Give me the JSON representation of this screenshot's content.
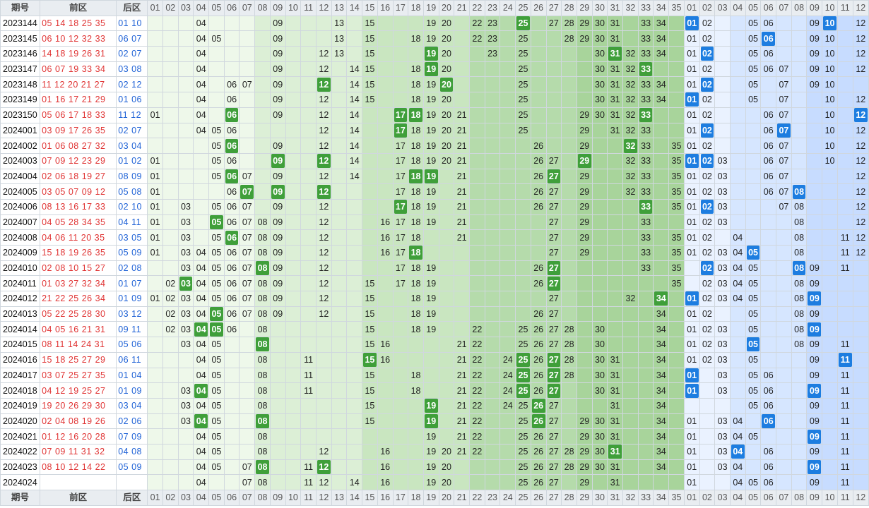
{
  "header": {
    "period_label": "期号",
    "front_label": "前区",
    "back_label": "后区",
    "front_numbers": [
      "01",
      "02",
      "03",
      "04",
      "05",
      "06",
      "07",
      "08",
      "09",
      "10",
      "11",
      "12",
      "13",
      "14",
      "15",
      "16",
      "17",
      "18",
      "19",
      "20",
      "21",
      "22",
      "23",
      "24",
      "25",
      "26",
      "27",
      "28",
      "29",
      "30",
      "31",
      "32",
      "33",
      "34",
      "35"
    ],
    "back_numbers": [
      "01",
      "02",
      "03",
      "04",
      "05",
      "06",
      "07",
      "08",
      "09",
      "10",
      "11",
      "12"
    ]
  },
  "colors": {
    "hit_front": "#3f9f3a",
    "hit_back": "#1d7de0",
    "front_draw_text": "#e03434",
    "back_draw_text": "#1f62d6"
  },
  "rows": [
    {
      "period": "2023144",
      "front": "05 14 18 25 35",
      "back": "01 10",
      "f": [
        4,
        9,
        13,
        15,
        19,
        20,
        22,
        23,
        25,
        27,
        28,
        29,
        30,
        31,
        33,
        34
      ],
      "fh": [
        25
      ],
      "b": [
        1,
        2,
        5,
        6,
        9,
        10,
        12
      ],
      "bh": [
        1,
        10
      ]
    },
    {
      "period": "2023145",
      "front": "06 10 12 32 33",
      "back": "06 07",
      "f": [
        4,
        5,
        9,
        13,
        15,
        18,
        19,
        20,
        22,
        23,
        25,
        28,
        29,
        30,
        31,
        33,
        34
      ],
      "fh": [],
      "b": [
        1,
        2,
        5,
        6,
        9,
        10,
        12
      ],
      "bh": [
        6
      ]
    },
    {
      "period": "2023146",
      "front": "14 18 19 26 31",
      "back": "02 07",
      "f": [
        4,
        9,
        12,
        13,
        15,
        19,
        20,
        23,
        25,
        30,
        31,
        32,
        33,
        34
      ],
      "fh": [
        19,
        31
      ],
      "b": [
        1,
        2,
        5,
        6,
        9,
        10,
        12
      ],
      "bh": [
        2
      ]
    },
    {
      "period": "2023147",
      "front": "06 07 19 33 34",
      "back": "03 08",
      "f": [
        4,
        9,
        12,
        14,
        15,
        18,
        19,
        20,
        25,
        30,
        31,
        32,
        33
      ],
      "fh": [
        19,
        33
      ],
      "b": [
        1,
        2,
        5,
        6,
        7,
        9,
        10,
        12
      ],
      "bh": []
    },
    {
      "period": "2023148",
      "front": "11 12 20 21 27",
      "back": "02 12",
      "f": [
        4,
        6,
        7,
        9,
        12,
        14,
        15,
        18,
        19,
        20,
        25,
        30,
        31,
        32,
        33,
        34
      ],
      "fh": [
        12,
        20
      ],
      "b": [
        1,
        2,
        5,
        7,
        9,
        10
      ],
      "bh": [
        2
      ]
    },
    {
      "period": "2023149",
      "front": "01 16 17 21 29",
      "back": "01 06",
      "f": [
        4,
        6,
        9,
        12,
        14,
        15,
        18,
        19,
        20,
        25,
        30,
        31,
        32,
        33,
        34
      ],
      "fh": [],
      "b": [
        1,
        2,
        5,
        7,
        10,
        12
      ],
      "bh": [
        1
      ]
    },
    {
      "period": "2023150",
      "front": "05 06 17 18 33",
      "back": "11 12",
      "f": [
        1,
        4,
        6,
        9,
        12,
        14,
        17,
        18,
        19,
        20,
        21,
        25,
        29,
        30,
        31,
        32,
        33
      ],
      "fh": [
        6,
        17,
        18,
        33
      ],
      "b": [
        1,
        2,
        6,
        7,
        10,
        12
      ],
      "bh": [
        12
      ]
    },
    {
      "period": "2024001",
      "front": "03 09 17 26 35",
      "back": "02 07",
      "f": [
        4,
        5,
        6,
        12,
        14,
        17,
        18,
        19,
        20,
        21,
        25,
        29,
        31,
        32,
        33
      ],
      "fh": [
        17
      ],
      "b": [
        1,
        2,
        6,
        7,
        10,
        12
      ],
      "bh": [
        2,
        7
      ]
    },
    {
      "period": "2024002",
      "front": "01 06 08 27 32",
      "back": "03 04",
      "f": [
        5,
        6,
        9,
        12,
        14,
        17,
        18,
        19,
        20,
        21,
        26,
        29,
        32,
        33,
        35
      ],
      "fh": [
        6,
        32
      ],
      "b": [
        1,
        2,
        6,
        7,
        10,
        12
      ],
      "bh": []
    },
    {
      "period": "2024003",
      "front": "07 09 12 23 29",
      "back": "01 02",
      "f": [
        1,
        5,
        6,
        9,
        12,
        14,
        17,
        18,
        19,
        20,
        21,
        26,
        27,
        29,
        32,
        33,
        35
      ],
      "fh": [
        9,
        12,
        29
      ],
      "b": [
        1,
        2,
        3,
        6,
        7,
        10,
        12
      ],
      "bh": [
        1,
        2
      ]
    },
    {
      "period": "2024004",
      "front": "02 06 18 19 27",
      "back": "08 09",
      "f": [
        1,
        5,
        6,
        7,
        9,
        12,
        14,
        17,
        18,
        19,
        21,
        26,
        27,
        29,
        32,
        33,
        35
      ],
      "fh": [
        6,
        18,
        19,
        27
      ],
      "b": [
        1,
        2,
        3,
        6,
        7,
        12
      ],
      "bh": []
    },
    {
      "period": "2024005",
      "front": "03 05 07 09 12",
      "back": "05 08",
      "f": [
        1,
        6,
        7,
        9,
        12,
        17,
        18,
        19,
        21,
        26,
        27,
        29,
        32,
        33,
        35
      ],
      "fh": [
        7,
        9,
        12
      ],
      "b": [
        1,
        2,
        3,
        6,
        7,
        8,
        12
      ],
      "bh": [
        8
      ]
    },
    {
      "period": "2024006",
      "front": "08 13 16 17 33",
      "back": "02 10",
      "f": [
        1,
        3,
        5,
        6,
        7,
        9,
        12,
        17,
        18,
        19,
        21,
        26,
        27,
        29,
        33,
        35
      ],
      "fh": [
        17,
        33
      ],
      "b": [
        1,
        2,
        3,
        7,
        8,
        12
      ],
      "bh": [
        2
      ]
    },
    {
      "period": "2024007",
      "front": "04 05 28 34 35",
      "back": "04 11",
      "f": [
        1,
        3,
        5,
        6,
        7,
        8,
        9,
        12,
        16,
        17,
        18,
        19,
        21,
        27,
        29,
        33
      ],
      "fh": [
        5
      ],
      "b": [
        1,
        2,
        3,
        8,
        12
      ],
      "bh": []
    },
    {
      "period": "2024008",
      "front": "04 06 11 20 35",
      "back": "03 05",
      "f": [
        1,
        3,
        5,
        6,
        7,
        8,
        9,
        12,
        16,
        17,
        18,
        21,
        27,
        29,
        33,
        35
      ],
      "fh": [
        6
      ],
      "b": [
        1,
        2,
        4,
        8,
        11,
        12
      ],
      "bh": []
    },
    {
      "period": "2024009",
      "front": "15 18 19 26 35",
      "back": "05 09",
      "f": [
        1,
        3,
        4,
        5,
        6,
        7,
        8,
        9,
        12,
        16,
        17,
        18,
        27,
        29,
        33,
        35
      ],
      "fh": [
        18
      ],
      "b": [
        1,
        2,
        3,
        4,
        5,
        8,
        11,
        12
      ],
      "bh": [
        5
      ]
    },
    {
      "period": "2024010",
      "front": "02 08 10 15 27",
      "back": "02 08",
      "f": [
        3,
        4,
        5,
        6,
        7,
        8,
        9,
        12,
        17,
        18,
        19,
        26,
        27,
        33,
        35
      ],
      "fh": [
        8,
        27
      ],
      "b": [
        2,
        3,
        4,
        5,
        8,
        9,
        11
      ],
      "bh": [
        2,
        8
      ]
    },
    {
      "period": "2024011",
      "front": "01 03 27 32 34",
      "back": "01 07",
      "f": [
        2,
        3,
        4,
        5,
        6,
        7,
        8,
        9,
        12,
        15,
        17,
        18,
        19,
        26,
        27,
        35
      ],
      "fh": [
        3,
        27
      ],
      "b": [
        2,
        3,
        4,
        5,
        8,
        9
      ],
      "bh": []
    },
    {
      "period": "2024012",
      "front": "21 22 25 26 34",
      "back": "01 09",
      "f": [
        1,
        2,
        3,
        4,
        5,
        6,
        7,
        8,
        9,
        12,
        15,
        18,
        19,
        27,
        32,
        34
      ],
      "fh": [
        34
      ],
      "b": [
        1,
        2,
        3,
        4,
        5,
        8,
        9
      ],
      "bh": [
        1,
        9
      ]
    },
    {
      "period": "2024013",
      "front": "05 22 25 28 30",
      "back": "03 12",
      "f": [
        2,
        3,
        4,
        5,
        6,
        7,
        8,
        9,
        12,
        15,
        18,
        19,
        26,
        27,
        34
      ],
      "fh": [
        5
      ],
      "b": [
        1,
        2,
        5,
        8,
        9
      ],
      "bh": []
    },
    {
      "period": "2024014",
      "front": "04 05 16 21 31",
      "back": "09 11",
      "f": [
        2,
        3,
        4,
        5,
        6,
        8,
        15,
        18,
        19,
        22,
        25,
        26,
        27,
        28,
        30,
        34
      ],
      "fh": [
        4,
        5
      ],
      "b": [
        1,
        2,
        3,
        5,
        8,
        9
      ],
      "bh": [
        9
      ]
    },
    {
      "period": "2024015",
      "front": "08 11 14 24 31",
      "back": "05 06",
      "f": [
        3,
        4,
        5,
        8,
        15,
        16,
        21,
        22,
        25,
        26,
        27,
        28,
        30,
        34
      ],
      "fh": [
        8
      ],
      "b": [
        1,
        2,
        3,
        5,
        8,
        9,
        11
      ],
      "bh": [
        5
      ]
    },
    {
      "period": "2024016",
      "front": "15 18 25 27 29",
      "back": "06 11",
      "f": [
        4,
        5,
        8,
        11,
        15,
        16,
        21,
        22,
        24,
        25,
        26,
        27,
        28,
        30,
        31,
        34
      ],
      "fh": [
        15,
        25,
        27
      ],
      "b": [
        1,
        2,
        3,
        5,
        9,
        11
      ],
      "bh": [
        11
      ]
    },
    {
      "period": "2024017",
      "front": "03 07 25 27 35",
      "back": "01 04",
      "f": [
        4,
        5,
        8,
        11,
        15,
        18,
        21,
        22,
        24,
        25,
        26,
        27,
        28,
        30,
        31,
        34
      ],
      "fh": [
        25,
        27
      ],
      "b": [
        1,
        3,
        5,
        6,
        9,
        11
      ],
      "bh": [
        1
      ]
    },
    {
      "period": "2024018",
      "front": "04 12 19 25 27",
      "back": "01 09",
      "f": [
        3,
        4,
        5,
        8,
        11,
        15,
        18,
        21,
        22,
        24,
        25,
        26,
        27,
        30,
        31,
        34
      ],
      "fh": [
        4,
        25,
        27
      ],
      "b": [
        1,
        3,
        5,
        6,
        9,
        11
      ],
      "bh": [
        1,
        9
      ]
    },
    {
      "period": "2024019",
      "front": "19 20 26 29 30",
      "back": "03 04",
      "f": [
        3,
        4,
        5,
        8,
        15,
        19,
        21,
        22,
        24,
        25,
        26,
        27,
        31,
        34
      ],
      "fh": [
        19,
        26
      ],
      "b": [
        5,
        6,
        9,
        11
      ],
      "bh": []
    },
    {
      "period": "2024020",
      "front": "02 04 08 19 26",
      "back": "02 06",
      "f": [
        3,
        4,
        5,
        8,
        15,
        19,
        21,
        22,
        25,
        26,
        27,
        29,
        30,
        31,
        34
      ],
      "fh": [
        4,
        8,
        19,
        26
      ],
      "b": [
        1,
        3,
        4,
        6,
        9,
        11
      ],
      "bh": [
        6
      ]
    },
    {
      "period": "2024021",
      "front": "01 12 16 20 28",
      "back": "07 09",
      "f": [
        4,
        5,
        8,
        19,
        21,
        22,
        25,
        26,
        27,
        29,
        30,
        31,
        34
      ],
      "fh": [],
      "b": [
        1,
        3,
        4,
        5,
        9,
        11
      ],
      "bh": [
        9
      ]
    },
    {
      "period": "2024022",
      "front": "07 09 11 31 32",
      "back": "04 08",
      "f": [
        4,
        5,
        8,
        12,
        16,
        19,
        20,
        21,
        22,
        25,
        26,
        27,
        28,
        29,
        30,
        31,
        34
      ],
      "fh": [
        31
      ],
      "b": [
        1,
        3,
        4,
        6,
        9,
        11
      ],
      "bh": [
        4
      ]
    },
    {
      "period": "2024023",
      "front": "08 10 12 14 22",
      "back": "05 09",
      "f": [
        4,
        5,
        7,
        8,
        11,
        12,
        16,
        19,
        20,
        25,
        26,
        27,
        28,
        29,
        30,
        31,
        34
      ],
      "fh": [
        8,
        12
      ],
      "b": [
        1,
        3,
        4,
        6,
        9,
        11
      ],
      "bh": [
        9
      ]
    },
    {
      "period": "2024024",
      "front": "",
      "back": "",
      "f": [
        4,
        7,
        8,
        11,
        12,
        14,
        16,
        19,
        20,
        25,
        26,
        27,
        29,
        31
      ],
      "fh": [],
      "b": [
        1,
        4,
        5,
        6,
        9,
        11
      ],
      "bh": []
    }
  ]
}
